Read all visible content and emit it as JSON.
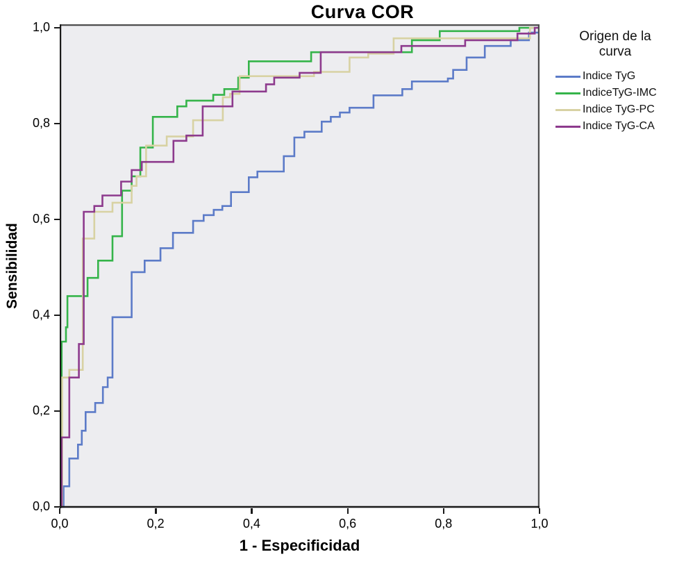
{
  "title": "Curva COR",
  "axes": {
    "x_label": "1 - Especificidad",
    "y_label": "Sensibilidad",
    "x_ticks": [
      "0,0",
      "0,2",
      "0,4",
      "0,6",
      "0,8",
      "1,0"
    ],
    "y_ticks": [
      "0,0",
      "0,2",
      "0,4",
      "0,6",
      "0,8",
      "1,0"
    ]
  },
  "legend": {
    "title_line1": "Origen de la",
    "title_line2": "curva"
  },
  "colors": {
    "plot_bg": "#EDEDF0",
    "frame_top_right": "#4D4D4D",
    "axis": "#1a1a1a",
    "blue": "#5C7BC8",
    "green": "#35B44A",
    "tan": "#D8D2A3",
    "purple": "#8D3A8D"
  },
  "chart_data": {
    "type": "line",
    "subtype": "roc-step-curves",
    "title": "Curva COR",
    "xlabel": "1 - Especificidad",
    "ylabel": "Sensibilidad",
    "xlim": [
      0,
      1
    ],
    "ylim": [
      0,
      1
    ],
    "x_tick_values": [
      0.0,
      0.2,
      0.4,
      0.6,
      0.8,
      1.0
    ],
    "y_tick_values": [
      0.0,
      0.2,
      0.4,
      0.6,
      0.8,
      1.0
    ],
    "grid": false,
    "legend_position": "right",
    "legend_title": "Origen de la curva",
    "series": [
      {
        "name": "Indice TyG",
        "color": "#5C7BC8",
        "points": [
          [
            0,
            0
          ],
          [
            0.008,
            0
          ],
          [
            0.008,
            0.043
          ],
          [
            0.02,
            0.043
          ],
          [
            0.02,
            0.101
          ],
          [
            0.038,
            0.101
          ],
          [
            0.038,
            0.13
          ],
          [
            0.046,
            0.13
          ],
          [
            0.046,
            0.159
          ],
          [
            0.054,
            0.159
          ],
          [
            0.054,
            0.198
          ],
          [
            0.074,
            0.198
          ],
          [
            0.074,
            0.217
          ],
          [
            0.09,
            0.217
          ],
          [
            0.09,
            0.25
          ],
          [
            0.1,
            0.25
          ],
          [
            0.1,
            0.27
          ],
          [
            0.11,
            0.27
          ],
          [
            0.11,
            0.396
          ],
          [
            0.15,
            0.396
          ],
          [
            0.15,
            0.49
          ],
          [
            0.177,
            0.49
          ],
          [
            0.177,
            0.514
          ],
          [
            0.21,
            0.514
          ],
          [
            0.21,
            0.54
          ],
          [
            0.236,
            0.54
          ],
          [
            0.236,
            0.572
          ],
          [
            0.278,
            0.572
          ],
          [
            0.278,
            0.597
          ],
          [
            0.3,
            0.597
          ],
          [
            0.3,
            0.609
          ],
          [
            0.321,
            0.609
          ],
          [
            0.321,
            0.62
          ],
          [
            0.339,
            0.62
          ],
          [
            0.339,
            0.628
          ],
          [
            0.357,
            0.628
          ],
          [
            0.357,
            0.657
          ],
          [
            0.394,
            0.657
          ],
          [
            0.394,
            0.688
          ],
          [
            0.412,
            0.688
          ],
          [
            0.412,
            0.7
          ],
          [
            0.467,
            0.7
          ],
          [
            0.467,
            0.732
          ],
          [
            0.489,
            0.732
          ],
          [
            0.489,
            0.771
          ],
          [
            0.51,
            0.771
          ],
          [
            0.51,
            0.783
          ],
          [
            0.546,
            0.783
          ],
          [
            0.546,
            0.804
          ],
          [
            0.565,
            0.804
          ],
          [
            0.565,
            0.814
          ],
          [
            0.584,
            0.814
          ],
          [
            0.584,
            0.823
          ],
          [
            0.604,
            0.823
          ],
          [
            0.604,
            0.833
          ],
          [
            0.654,
            0.833
          ],
          [
            0.654,
            0.859
          ],
          [
            0.714,
            0.859
          ],
          [
            0.714,
            0.872
          ],
          [
            0.734,
            0.872
          ],
          [
            0.734,
            0.888
          ],
          [
            0.809,
            0.888
          ],
          [
            0.809,
            0.894
          ],
          [
            0.82,
            0.894
          ],
          [
            0.82,
            0.912
          ],
          [
            0.848,
            0.912
          ],
          [
            0.848,
            0.938
          ],
          [
            0.886,
            0.938
          ],
          [
            0.886,
            0.962
          ],
          [
            0.94,
            0.962
          ],
          [
            0.94,
            0.974
          ],
          [
            0.978,
            0.974
          ],
          [
            0.978,
            0.99
          ],
          [
            1,
            0.99
          ],
          [
            1,
            1
          ]
        ]
      },
      {
        "name": "IndiceTyG-IMC",
        "color": "#35B44A",
        "points": [
          [
            0,
            0
          ],
          [
            0.004,
            0
          ],
          [
            0.004,
            0.345
          ],
          [
            0.013,
            0.345
          ],
          [
            0.013,
            0.375
          ],
          [
            0.016,
            0.375
          ],
          [
            0.016,
            0.44
          ],
          [
            0.058,
            0.44
          ],
          [
            0.058,
            0.478
          ],
          [
            0.08,
            0.478
          ],
          [
            0.08,
            0.514
          ],
          [
            0.11,
            0.514
          ],
          [
            0.11,
            0.565
          ],
          [
            0.13,
            0.565
          ],
          [
            0.13,
            0.66
          ],
          [
            0.15,
            0.66
          ],
          [
            0.15,
            0.69
          ],
          [
            0.168,
            0.69
          ],
          [
            0.168,
            0.75
          ],
          [
            0.194,
            0.75
          ],
          [
            0.194,
            0.814
          ],
          [
            0.245,
            0.814
          ],
          [
            0.245,
            0.836
          ],
          [
            0.264,
            0.836
          ],
          [
            0.264,
            0.848
          ],
          [
            0.32,
            0.848
          ],
          [
            0.32,
            0.86
          ],
          [
            0.343,
            0.86
          ],
          [
            0.343,
            0.872
          ],
          [
            0.372,
            0.872
          ],
          [
            0.372,
            0.896
          ],
          [
            0.394,
            0.896
          ],
          [
            0.394,
            0.93
          ],
          [
            0.524,
            0.93
          ],
          [
            0.524,
            0.949
          ],
          [
            0.734,
            0.949
          ],
          [
            0.734,
            0.974
          ],
          [
            0.792,
            0.974
          ],
          [
            0.792,
            0.993
          ],
          [
            0.958,
            0.993
          ],
          [
            0.958,
            1
          ],
          [
            1,
            1
          ]
        ]
      },
      {
        "name": "Indice TyG-PC",
        "color": "#D8D2A3",
        "points": [
          [
            0,
            0
          ],
          [
            0.005,
            0
          ],
          [
            0.005,
            0.27
          ],
          [
            0.02,
            0.27
          ],
          [
            0.02,
            0.286
          ],
          [
            0.048,
            0.286
          ],
          [
            0.048,
            0.56
          ],
          [
            0.072,
            0.56
          ],
          [
            0.072,
            0.616
          ],
          [
            0.11,
            0.616
          ],
          [
            0.11,
            0.635
          ],
          [
            0.15,
            0.635
          ],
          [
            0.15,
            0.67
          ],
          [
            0.16,
            0.67
          ],
          [
            0.16,
            0.69
          ],
          [
            0.18,
            0.69
          ],
          [
            0.18,
            0.754
          ],
          [
            0.223,
            0.754
          ],
          [
            0.223,
            0.773
          ],
          [
            0.278,
            0.773
          ],
          [
            0.278,
            0.807
          ],
          [
            0.34,
            0.807
          ],
          [
            0.34,
            0.855
          ],
          [
            0.355,
            0.855
          ],
          [
            0.355,
            0.862
          ],
          [
            0.375,
            0.862
          ],
          [
            0.375,
            0.899
          ],
          [
            0.53,
            0.899
          ],
          [
            0.53,
            0.908
          ],
          [
            0.604,
            0.908
          ],
          [
            0.604,
            0.938
          ],
          [
            0.643,
            0.938
          ],
          [
            0.643,
            0.946
          ],
          [
            0.696,
            0.946
          ],
          [
            0.696,
            0.978
          ],
          [
            0.98,
            0.978
          ],
          [
            0.98,
            1
          ],
          [
            1,
            1
          ]
        ]
      },
      {
        "name": "Indice TyG-CA",
        "color": "#8D3A8D",
        "points": [
          [
            0,
            0
          ],
          [
            0.004,
            0
          ],
          [
            0.004,
            0.145
          ],
          [
            0.02,
            0.145
          ],
          [
            0.02,
            0.27
          ],
          [
            0.04,
            0.27
          ],
          [
            0.04,
            0.34
          ],
          [
            0.05,
            0.34
          ],
          [
            0.05,
            0.616
          ],
          [
            0.072,
            0.616
          ],
          [
            0.072,
            0.628
          ],
          [
            0.089,
            0.628
          ],
          [
            0.089,
            0.65
          ],
          [
            0.128,
            0.65
          ],
          [
            0.128,
            0.679
          ],
          [
            0.15,
            0.679
          ],
          [
            0.15,
            0.703
          ],
          [
            0.171,
            0.703
          ],
          [
            0.171,
            0.72
          ],
          [
            0.237,
            0.72
          ],
          [
            0.237,
            0.764
          ],
          [
            0.264,
            0.764
          ],
          [
            0.264,
            0.775
          ],
          [
            0.298,
            0.775
          ],
          [
            0.298,
            0.836
          ],
          [
            0.36,
            0.836
          ],
          [
            0.36,
            0.867
          ],
          [
            0.43,
            0.867
          ],
          [
            0.43,
            0.882
          ],
          [
            0.447,
            0.882
          ],
          [
            0.447,
            0.896
          ],
          [
            0.5,
            0.896
          ],
          [
            0.5,
            0.906
          ],
          [
            0.544,
            0.906
          ],
          [
            0.544,
            0.949
          ],
          [
            0.712,
            0.949
          ],
          [
            0.712,
            0.962
          ],
          [
            0.845,
            0.962
          ],
          [
            0.845,
            0.974
          ],
          [
            0.954,
            0.974
          ],
          [
            0.954,
            0.988
          ],
          [
            0.99,
            0.988
          ],
          [
            0.99,
            1
          ],
          [
            1,
            1
          ]
        ]
      }
    ]
  }
}
